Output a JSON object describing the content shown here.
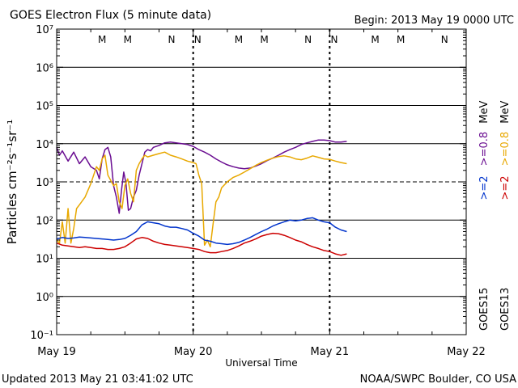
{
  "chart_data": {
    "type": "line",
    "title": "GOES Electron Flux (5 minute data)",
    "begin_label": "Begin: 2013 May 19 0000 UTC",
    "xlabel": "Universal Time",
    "ylabel": "Particles cm⁻²s⁻¹sr⁻¹",
    "updated": "Updated 2013 May 21 03:41:02 UTC",
    "credit": "NOAA/SWPC Boulder, CO USA",
    "xlim": [
      0,
      72
    ],
    "ylim_log10": [
      -1,
      7
    ],
    "x_ticks": [
      {
        "t": 0,
        "label": "May 19"
      },
      {
        "t": 24,
        "label": "May 20"
      },
      {
        "t": 48,
        "label": "May 21"
      },
      {
        "t": 72,
        "label": "May 22"
      }
    ],
    "y_ticks": [
      {
        "exp": 7,
        "label": "10⁷"
      },
      {
        "exp": 6,
        "label": "10⁶"
      },
      {
        "exp": 5,
        "label": "10⁵"
      },
      {
        "exp": 4,
        "label": "10⁴"
      },
      {
        "exp": 3,
        "label": "10³"
      },
      {
        "exp": 2,
        "label": "10²"
      },
      {
        "exp": 1,
        "label": "10¹"
      },
      {
        "exp": 0,
        "label": "10⁰"
      },
      {
        "exp": -1,
        "label": "10⁻¹"
      }
    ],
    "threshold_exp": 3,
    "markers": [
      {
        "t": 8.0,
        "label": "M",
        "color": "#cc0000"
      },
      {
        "t": 12.5,
        "label": "M",
        "color": "#0033aa"
      },
      {
        "t": 20.2,
        "label": "N",
        "color": "#cc0000"
      },
      {
        "t": 24.8,
        "label": "N",
        "color": "#0033aa"
      },
      {
        "t": 32.0,
        "label": "M",
        "color": "#cc0000"
      },
      {
        "t": 36.5,
        "label": "M",
        "color": "#0033aa"
      },
      {
        "t": 44.2,
        "label": "N",
        "color": "#cc0000"
      },
      {
        "t": 48.8,
        "label": "N",
        "color": "#0033aa"
      },
      {
        "t": 56.0,
        "label": "M",
        "color": "#cc0000"
      },
      {
        "t": 60.5,
        "label": "M",
        "color": "#0033aa"
      },
      {
        "t": 68.2,
        "label": "N",
        "color": "#cc0000"
      },
      {
        "t": 72.8,
        "label": "N",
        "color": "#0033aa"
      }
    ],
    "legend": [
      {
        "label": "GOES15",
        "color": "#000000"
      },
      {
        "label": ">=2",
        "color": "#0033cc"
      },
      {
        "label": ">=0.8",
        "color": "#6a0d91"
      },
      {
        "label": "MeV",
        "color": "#000000"
      },
      {
        "label": "GOES13",
        "color": "#000000"
      },
      {
        "label": ">=2",
        "color": "#cc0000"
      },
      {
        "label": ">=0.8",
        "color": "#e8a800"
      },
      {
        "label": "MeV",
        "color": "#000000"
      }
    ],
    "series": [
      {
        "name": "GOES15 >=0.8 MeV",
        "color": "#6a0d91",
        "points": [
          [
            0,
            8000
          ],
          [
            0.5,
            5000
          ],
          [
            1,
            6500
          ],
          [
            2,
            3500
          ],
          [
            3,
            6000
          ],
          [
            4,
            3000
          ],
          [
            5,
            4500
          ],
          [
            6,
            2500
          ],
          [
            7,
            2000
          ],
          [
            7.5,
            1200
          ],
          [
            8,
            4000
          ],
          [
            8.5,
            7000
          ],
          [
            9,
            8000
          ],
          [
            9.5,
            4500
          ],
          [
            10,
            800
          ],
          [
            10.5,
            400
          ],
          [
            11,
            150
          ],
          [
            11.4,
            600
          ],
          [
            11.8,
            1800
          ],
          [
            12.2,
            900
          ],
          [
            12.6,
            180
          ],
          [
            13,
            200
          ],
          [
            13.5,
            400
          ],
          [
            14,
            600
          ],
          [
            14.5,
            1500
          ],
          [
            15,
            3000
          ],
          [
            15.5,
            6000
          ],
          [
            16,
            7000
          ],
          [
            16.5,
            6500
          ],
          [
            17,
            8000
          ],
          [
            18,
            9000
          ],
          [
            19,
            10500
          ],
          [
            20,
            11000
          ],
          [
            21,
            10500
          ],
          [
            22,
            10000
          ],
          [
            23,
            9500
          ],
          [
            24,
            8500
          ],
          [
            25,
            7000
          ],
          [
            26,
            6000
          ],
          [
            27,
            5000
          ],
          [
            28,
            4000
          ],
          [
            29,
            3300
          ],
          [
            30,
            2800
          ],
          [
            31,
            2500
          ],
          [
            32,
            2300
          ],
          [
            33,
            2200
          ],
          [
            34,
            2300
          ],
          [
            35,
            2600
          ],
          [
            36,
            3000
          ],
          [
            37,
            3600
          ],
          [
            38,
            4200
          ],
          [
            39,
            5000
          ],
          [
            40,
            6000
          ],
          [
            41,
            7000
          ],
          [
            42,
            8000
          ],
          [
            43,
            9500
          ],
          [
            44,
            10500
          ],
          [
            45,
            11500
          ],
          [
            46,
            12500
          ],
          [
            47,
            12500
          ],
          [
            48,
            12000
          ],
          [
            49,
            11000
          ],
          [
            50,
            11000
          ],
          [
            51,
            11500
          ]
        ]
      },
      {
        "name": "GOES13 >=0.8 MeV",
        "color": "#e8a800",
        "points": [
          [
            0,
            30
          ],
          [
            0.5,
            25
          ],
          [
            1,
            90
          ],
          [
            1.5,
            25
          ],
          [
            2,
            200
          ],
          [
            2.5,
            25
          ],
          [
            3,
            60
          ],
          [
            3.5,
            200
          ],
          [
            4,
            250
          ],
          [
            5,
            400
          ],
          [
            6,
            900
          ],
          [
            7,
            2500
          ],
          [
            7.5,
            2000
          ],
          [
            8,
            4000
          ],
          [
            8.5,
            5000
          ],
          [
            9,
            1500
          ],
          [
            10,
            800
          ],
          [
            10.5,
            900
          ],
          [
            11,
            300
          ],
          [
            11.5,
            200
          ],
          [
            12,
            800
          ],
          [
            12.5,
            1200
          ],
          [
            13,
            500
          ],
          [
            13.5,
            300
          ],
          [
            14,
            2000
          ],
          [
            14.5,
            3000
          ],
          [
            15,
            4000
          ],
          [
            15.5,
            5000
          ],
          [
            16,
            4500
          ],
          [
            17,
            5000
          ],
          [
            18,
            5500
          ],
          [
            19,
            6000
          ],
          [
            20,
            5000
          ],
          [
            21,
            4500
          ],
          [
            22,
            4000
          ],
          [
            23,
            3500
          ],
          [
            24,
            3200
          ],
          [
            24.5,
            3000
          ],
          [
            25,
            1500
          ],
          [
            25.5,
            900
          ],
          [
            26,
            22
          ],
          [
            26.5,
            30
          ],
          [
            27,
            20
          ],
          [
            27.5,
            80
          ],
          [
            28,
            300
          ],
          [
            28.5,
            400
          ],
          [
            29,
            700
          ],
          [
            30,
            1000
          ],
          [
            31,
            1300
          ],
          [
            32,
            1500
          ],
          [
            33,
            1800
          ],
          [
            34,
            2200
          ],
          [
            35,
            2700
          ],
          [
            36,
            3200
          ],
          [
            37,
            3700
          ],
          [
            38,
            4200
          ],
          [
            39,
            4600
          ],
          [
            40,
            4800
          ],
          [
            41,
            4500
          ],
          [
            42,
            4000
          ],
          [
            43,
            3800
          ],
          [
            44,
            4200
          ],
          [
            45,
            4800
          ],
          [
            46,
            4400
          ],
          [
            47,
            4000
          ],
          [
            48,
            3900
          ],
          [
            49,
            3500
          ],
          [
            50,
            3200
          ],
          [
            51,
            3000
          ]
        ]
      },
      {
        "name": "GOES15 >=2 MeV",
        "color": "#0033cc",
        "points": [
          [
            0,
            32
          ],
          [
            1,
            35
          ],
          [
            2,
            33
          ],
          [
            3,
            34
          ],
          [
            4,
            36
          ],
          [
            5,
            35
          ],
          [
            6,
            34
          ],
          [
            7,
            33
          ],
          [
            8,
            32
          ],
          [
            9,
            31
          ],
          [
            10,
            30
          ],
          [
            11,
            31
          ],
          [
            12,
            33
          ],
          [
            13,
            40
          ],
          [
            14,
            50
          ],
          [
            15,
            75
          ],
          [
            16,
            90
          ],
          [
            17,
            85
          ],
          [
            18,
            80
          ],
          [
            19,
            70
          ],
          [
            20,
            65
          ],
          [
            21,
            65
          ],
          [
            22,
            60
          ],
          [
            23,
            55
          ],
          [
            24,
            45
          ],
          [
            25,
            38
          ],
          [
            26,
            30
          ],
          [
            27,
            28
          ],
          [
            28,
            25
          ],
          [
            29,
            24
          ],
          [
            30,
            23
          ],
          [
            31,
            24
          ],
          [
            32,
            26
          ],
          [
            33,
            30
          ],
          [
            34,
            35
          ],
          [
            35,
            42
          ],
          [
            36,
            50
          ],
          [
            37,
            58
          ],
          [
            38,
            70
          ],
          [
            39,
            80
          ],
          [
            40,
            90
          ],
          [
            41,
            100
          ],
          [
            42,
            95
          ],
          [
            43,
            100
          ],
          [
            44,
            110
          ],
          [
            45,
            115
          ],
          [
            46,
            100
          ],
          [
            47,
            90
          ],
          [
            48,
            85
          ],
          [
            49,
            65
          ],
          [
            50,
            55
          ],
          [
            51,
            50
          ]
        ]
      },
      {
        "name": "GOES13 >=2 MeV",
        "color": "#cc0000",
        "points": [
          [
            0,
            25
          ],
          [
            1,
            22
          ],
          [
            2,
            21
          ],
          [
            3,
            20
          ],
          [
            4,
            19
          ],
          [
            5,
            20
          ],
          [
            6,
            19
          ],
          [
            7,
            18
          ],
          [
            8,
            18
          ],
          [
            9,
            17
          ],
          [
            10,
            17
          ],
          [
            11,
            18
          ],
          [
            12,
            20
          ],
          [
            13,
            25
          ],
          [
            14,
            32
          ],
          [
            15,
            35
          ],
          [
            16,
            33
          ],
          [
            17,
            28
          ],
          [
            18,
            25
          ],
          [
            19,
            23
          ],
          [
            20,
            22
          ],
          [
            21,
            21
          ],
          [
            22,
            20
          ],
          [
            23,
            19
          ],
          [
            24,
            18
          ],
          [
            25,
            17
          ],
          [
            26,
            15
          ],
          [
            27,
            14
          ],
          [
            28,
            14
          ],
          [
            29,
            15
          ],
          [
            30,
            16
          ],
          [
            31,
            18
          ],
          [
            32,
            21
          ],
          [
            33,
            25
          ],
          [
            34,
            28
          ],
          [
            35,
            32
          ],
          [
            36,
            38
          ],
          [
            37,
            42
          ],
          [
            38,
            45
          ],
          [
            39,
            44
          ],
          [
            40,
            40
          ],
          [
            41,
            35
          ],
          [
            42,
            30
          ],
          [
            43,
            27
          ],
          [
            44,
            23
          ],
          [
            45,
            20
          ],
          [
            46,
            18
          ],
          [
            47,
            16
          ],
          [
            48,
            15
          ],
          [
            49,
            13
          ],
          [
            50,
            12
          ],
          [
            51,
            13
          ]
        ]
      }
    ]
  }
}
